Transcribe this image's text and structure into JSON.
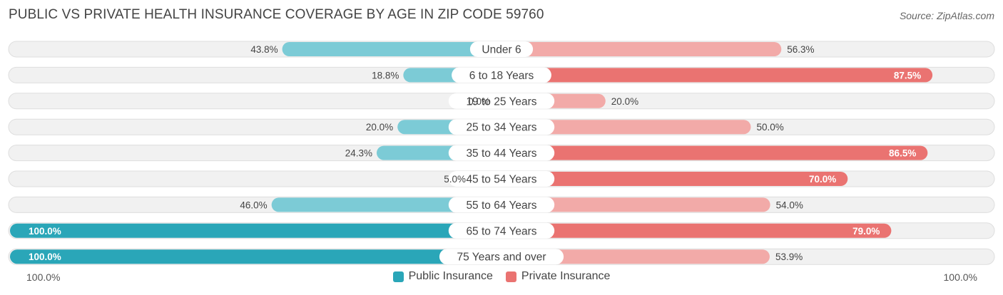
{
  "title": "PUBLIC VS PRIVATE HEALTH INSURANCE COVERAGE BY AGE IN ZIP CODE 59760",
  "source": "Source: ZipAtlas.com",
  "colors": {
    "public_dark": "#2aa6b8",
    "public_light": "#7ccbd6",
    "private_dark": "#ea7371",
    "private_light": "#f2aaa8",
    "track": "#f1f1f1"
  },
  "chart_data": {
    "type": "bar",
    "orientation": "horizontal-diverging",
    "title": "PUBLIC VS PRIVATE HEALTH INSURANCE COVERAGE BY AGE IN ZIP CODE 59760",
    "categories": [
      "Under 6",
      "6 to 18 Years",
      "19 to 25 Years",
      "25 to 34 Years",
      "35 to 44 Years",
      "45 to 54 Years",
      "55 to 64 Years",
      "65 to 74 Years",
      "75 Years and over"
    ],
    "series": [
      {
        "name": "Public Insurance",
        "values": [
          43.8,
          18.8,
          0.0,
          20.0,
          24.3,
          5.0,
          46.0,
          100.0,
          100.0
        ],
        "labels": [
          "43.8%",
          "18.8%",
          "0.0%",
          "20.0%",
          "24.3%",
          "5.0%",
          "46.0%",
          "100.0%",
          "100.0%"
        ]
      },
      {
        "name": "Private Insurance",
        "values": [
          56.3,
          87.5,
          20.0,
          50.0,
          86.5,
          70.0,
          54.0,
          79.0,
          53.9
        ],
        "labels": [
          "56.3%",
          "87.5%",
          "20.0%",
          "50.0%",
          "86.5%",
          "70.0%",
          "54.0%",
          "79.0%",
          "53.9%"
        ]
      }
    ],
    "xlim": [
      -100,
      100
    ],
    "axis_left_label": "100.0%",
    "axis_right_label": "100.0%",
    "legend_position": "bottom-center"
  }
}
